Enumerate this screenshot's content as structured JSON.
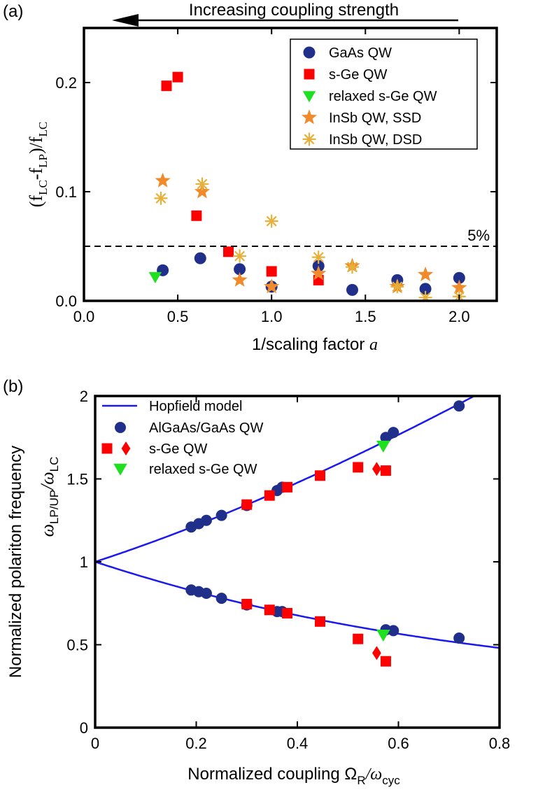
{
  "chart_data": [
    {
      "panel": "(a)",
      "type": "scatter",
      "top_annotation": "Increasing coupling strength",
      "xlabel": "1/scaling factor",
      "xlabel_var": "a",
      "ylabel": "(fLC-fLP)/fLC",
      "xlim": [
        0,
        2.2
      ],
      "ylim": [
        0,
        0.25
      ],
      "xticks": [
        0.0,
        0.5,
        1.0,
        1.5,
        2.0
      ],
      "xtick_labels": [
        "0.0",
        "0.5",
        "1.0",
        "1.5",
        "2.0"
      ],
      "yticks": [
        0.0,
        0.1,
        0.2
      ],
      "ytick_labels": [
        "0.0",
        "0.1",
        "0.2"
      ],
      "threshold": {
        "y": 0.05,
        "label": "5%"
      },
      "legend_position": "top-right",
      "series": [
        {
          "name": "GaAs QW",
          "marker": "circle",
          "color": "#1f2f8a",
          "x": [
            0.42,
            0.62,
            0.83,
            1.0,
            1.25,
            1.43,
            1.67,
            1.82,
            2.0
          ],
          "y": [
            0.028,
            0.039,
            0.029,
            0.013,
            0.032,
            0.01,
            0.019,
            0.011,
            0.021
          ]
        },
        {
          "name": "s-Ge QW",
          "marker": "square",
          "color": "#ff0000",
          "x": [
            0.44,
            0.5,
            0.6,
            0.77,
            1.0,
            1.25
          ],
          "y": [
            0.197,
            0.205,
            0.078,
            0.045,
            0.027,
            0.019
          ]
        },
        {
          "name": "relaxed s-Ge QW",
          "marker": "triangle-down",
          "color": "#1fe01f",
          "x": [
            0.38
          ],
          "y": [
            0.022
          ]
        },
        {
          "name": "InSb QW, SSD",
          "marker": "star",
          "color": "#f08a2a",
          "x": [
            0.42,
            0.63,
            0.83,
            1.0,
            1.25,
            1.43,
            1.67,
            1.82,
            2.0
          ],
          "y": [
            0.11,
            0.1,
            0.019,
            0.013,
            0.025,
            0.032,
            0.013,
            0.024,
            0.012
          ]
        },
        {
          "name": "InSb QW, DSD",
          "marker": "asterisk",
          "color": "#e6b03a",
          "x": [
            0.41,
            0.63,
            0.83,
            1.0,
            1.25,
            1.43,
            1.67,
            1.82,
            2.0
          ],
          "y": [
            0.094,
            0.107,
            0.041,
            0.073,
            0.04,
            0.031,
            0.013,
            0.003,
            0.004
          ]
        }
      ]
    },
    {
      "panel": "(b)",
      "type": "scatter",
      "xlabel": "Normalized coupling Ω",
      "xlabel_sub1": "R",
      "xlabel_mid": "/ω",
      "xlabel_sub2": "cyc",
      "ylabel": "Normalized polariton frequency",
      "ylabel2_main": "ω",
      "ylabel2_sub": "LP/UP",
      "ylabel2_mid": "/ω",
      "ylabel2_sub2": "LC",
      "xlim": [
        0,
        0.8
      ],
      "ylim": [
        0,
        2
      ],
      "xticks": [
        0,
        0.2,
        0.4,
        0.6,
        0.8
      ],
      "xtick_labels": [
        "0",
        "0.2",
        "0.4",
        "0.6",
        "0.8"
      ],
      "yticks": [
        0,
        0.5,
        1,
        1.5,
        2
      ],
      "ytick_labels": [
        "0",
        "0.5",
        "1",
        "1.5",
        "2"
      ],
      "legend_position": "top-left",
      "series": [
        {
          "name": "Hopfield model",
          "type": "line",
          "color": "#1a1aee"
        },
        {
          "name": "AlGaAs/GaAs QW",
          "marker": "circle",
          "color": "#1f2f8a",
          "x": [
            0.19,
            0.205,
            0.22,
            0.25,
            0.3,
            0.36,
            0.37,
            0.575,
            0.59,
            0.72,
            0.19,
            0.205,
            0.22,
            0.25,
            0.3,
            0.36,
            0.37,
            0.575,
            0.59,
            0.72
          ],
          "y": [
            1.21,
            1.23,
            1.25,
            1.28,
            1.34,
            1.43,
            1.45,
            1.75,
            1.78,
            1.94,
            0.83,
            0.82,
            0.81,
            0.78,
            0.74,
            0.7,
            0.7,
            0.59,
            0.585,
            0.54
          ]
        },
        {
          "name": "s-Ge QW",
          "marker": "square",
          "color": "#ff0000",
          "x": [
            0.3,
            0.345,
            0.38,
            0.445,
            0.52,
            0.575,
            0.3,
            0.345,
            0.38,
            0.445,
            0.52,
            0.575
          ],
          "y": [
            1.345,
            1.4,
            1.45,
            1.52,
            1.57,
            1.55,
            0.745,
            0.71,
            0.69,
            0.64,
            0.535,
            0.4
          ]
        },
        {
          "name": "",
          "marker": "diamond",
          "color": "#ff0000",
          "x": [
            0.557,
            0.557
          ],
          "y": [
            1.56,
            0.45
          ]
        },
        {
          "name": "relaxed s-Ge QW",
          "marker": "triangle-down",
          "color": "#1fe01f",
          "x": [
            0.57,
            0.57
          ],
          "y": [
            1.7,
            0.56
          ]
        }
      ]
    }
  ]
}
